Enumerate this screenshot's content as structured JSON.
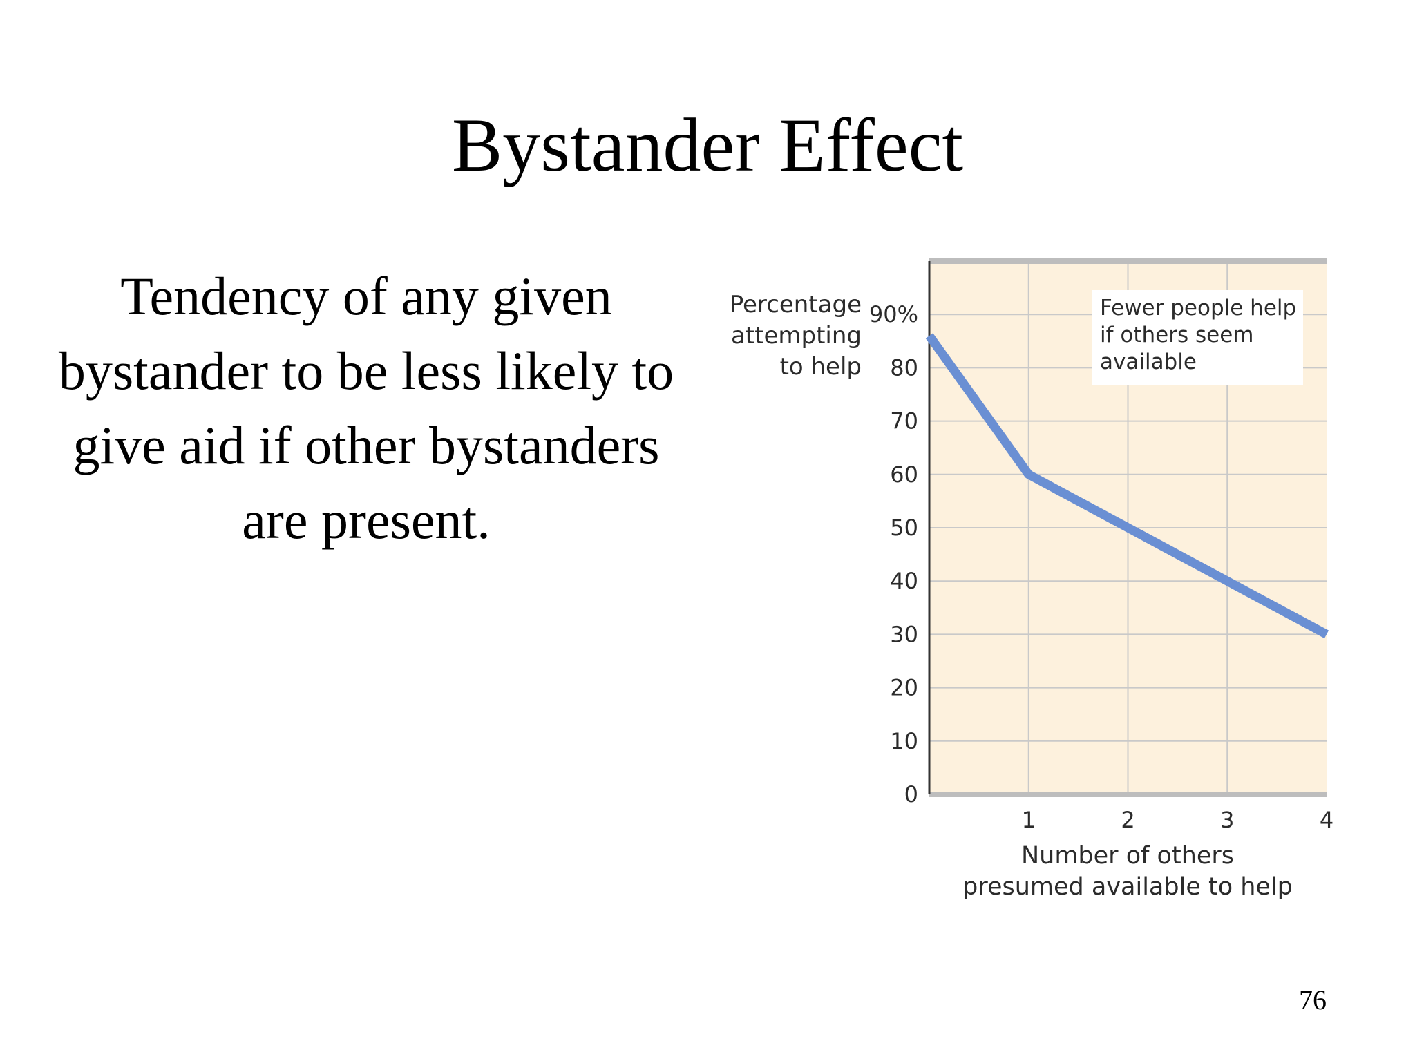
{
  "slide": {
    "title": "Bystander Effect",
    "body": "Tendency of any given bystander to be less likely to give aid if other bystanders are present.",
    "page_number": "76"
  },
  "chart_data": {
    "type": "line",
    "ylabel_lines": [
      "Percentage",
      "attempting",
      "to help"
    ],
    "xlabel_lines": [
      "Number of others",
      "presumed available to help"
    ],
    "y_ticks": [
      "0",
      "10",
      "20",
      "30",
      "40",
      "50",
      "60",
      "70",
      "80",
      "90%"
    ],
    "x_ticks": [
      "1",
      "2",
      "3",
      "4"
    ],
    "ylim": [
      0,
      90
    ],
    "xlim": [
      0,
      4
    ],
    "grid": true,
    "annotation_lines": [
      "Fewer people help",
      "if others seem",
      "available"
    ],
    "series": [
      {
        "x": [
          0,
          1,
          2,
          3,
          4
        ],
        "y": [
          86,
          60,
          50,
          40,
          30
        ]
      }
    ],
    "colors": {
      "line": "#6a8fd3",
      "plot_background": "#fdf1dd",
      "grid": "#c9c9c9",
      "frame": "#bdbdbd",
      "annotation_background": "#ffffff"
    }
  }
}
